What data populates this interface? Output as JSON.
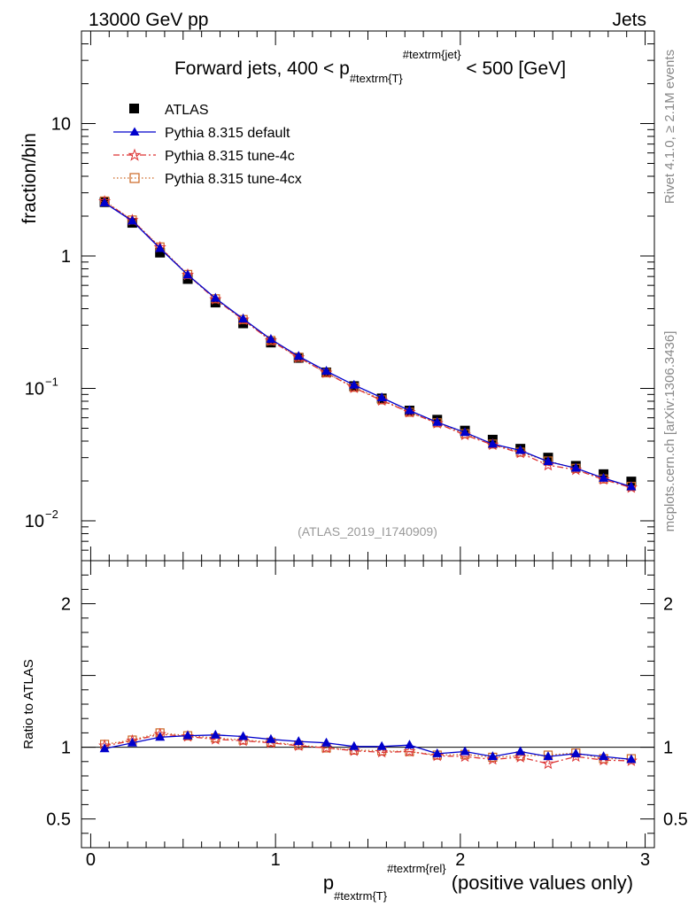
{
  "header": {
    "energy_label": "13000 GeV pp",
    "category_label": "Jets"
  },
  "side_labels": {
    "rivet": "Rivet 4.1.0, ≥ 2.1M events",
    "mcplots": "mcplots.cern.ch [arXiv:1306.3436]"
  },
  "chart_data": [
    {
      "type": "scatter",
      "panel": "main",
      "title_main": "Forward jets, 400 < p",
      "title_sub": "#textrm{T}",
      "title_sup": "#textrm{jet}",
      "title_tail": " < 500 [GeV]",
      "ylabel": "fraction/bin",
      "yscale": "log",
      "ylim": [
        0.005,
        50
      ],
      "xlim": [
        -0.05,
        3.05
      ],
      "y_ticks": [
        {
          "v": 10,
          "label": "10"
        },
        {
          "v": 1,
          "label": "1"
        },
        {
          "v": 0.1,
          "label": "10",
          "exp": "−1"
        },
        {
          "v": 0.01,
          "label": "10",
          "exp": "−2"
        }
      ],
      "analysis_tag": "(ATLAS_2019_I1740909)",
      "legend": [
        "ATLAS",
        "Pythia 8.315 default",
        "Pythia 8.315 tune-4c",
        "Pythia 8.315 tune-4cx"
      ],
      "x": [
        0.075,
        0.225,
        0.375,
        0.525,
        0.675,
        0.825,
        0.975,
        1.125,
        1.275,
        1.425,
        1.575,
        1.725,
        1.875,
        2.025,
        2.175,
        2.325,
        2.475,
        2.625,
        2.775,
        2.925
      ],
      "series": [
        {
          "name": "ATLAS",
          "color": "#000000",
          "values": [
            2.55,
            1.78,
            1.06,
            0.67,
            0.445,
            0.31,
            0.222,
            0.17,
            0.132,
            0.104,
            0.084,
            0.068,
            0.058,
            0.048,
            0.041,
            0.035,
            0.03,
            0.026,
            0.0225,
            0.0198
          ]
        },
        {
          "name": "Pythia 8.315 default",
          "color": "#0000cc",
          "values": [
            2.52,
            1.84,
            1.14,
            0.72,
            0.48,
            0.335,
            0.235,
            0.175,
            0.135,
            0.106,
            0.085,
            0.068,
            0.0555,
            0.0465,
            0.038,
            0.034,
            0.028,
            0.025,
            0.021,
            0.0181
          ]
        },
        {
          "name": "Pythia 8.315 tune-4c",
          "color": "#dd3333",
          "values": [
            2.58,
            1.86,
            1.16,
            0.72,
            0.47,
            0.33,
            0.229,
            0.171,
            0.131,
            0.101,
            0.081,
            0.066,
            0.0545,
            0.0445,
            0.0375,
            0.0325,
            0.0263,
            0.0243,
            0.0205,
            0.0178
          ]
        },
        {
          "name": "Pythia 8.315 tune-4cx",
          "color": "#cc6622",
          "values": [
            2.6,
            1.87,
            1.17,
            0.725,
            0.475,
            0.331,
            0.23,
            0.172,
            0.131,
            0.102,
            0.082,
            0.066,
            0.055,
            0.0455,
            0.038,
            0.033,
            0.0283,
            0.0249,
            0.0207,
            0.0182
          ]
        }
      ]
    },
    {
      "type": "line",
      "panel": "ratio",
      "ylabel": "Ratio to ATLAS",
      "ylim": [
        0.3,
        2.3
      ],
      "y_ticks": [
        {
          "v": 2,
          "label": "2"
        },
        {
          "v": 1,
          "label": "1"
        },
        {
          "v": 0.5,
          "label": "0.5"
        }
      ],
      "x_ticks": [
        {
          "v": 0,
          "label": "0"
        },
        {
          "v": 1,
          "label": "1"
        },
        {
          "v": 2,
          "label": "2"
        },
        {
          "v": 3,
          "label": "3"
        }
      ],
      "xlabel_main": "p",
      "xlabel_sub": "#textrm{T}",
      "xlabel_sup": "#textrm{rel}",
      "xlabel_tail": " (positive values only)",
      "series": [
        {
          "name": "Pythia 8.315 default",
          "values": [
            0.99,
            1.03,
            1.07,
            1.08,
            1.085,
            1.075,
            1.055,
            1.04,
            1.03,
            1.005,
            1.005,
            1.015,
            0.955,
            0.97,
            0.935,
            0.97,
            0.935,
            0.955,
            0.935,
            0.915
          ]
        },
        {
          "name": "Pythia 8.315 tune-4c",
          "values": [
            1.01,
            1.045,
            1.09,
            1.075,
            1.055,
            1.045,
            1.03,
            1.01,
            0.995,
            0.975,
            0.965,
            0.97,
            0.94,
            0.935,
            0.915,
            0.93,
            0.885,
            0.935,
            0.91,
            0.905
          ]
        },
        {
          "name": "Pythia 8.315 tune-4cx",
          "values": [
            1.02,
            1.05,
            1.1,
            1.08,
            1.065,
            1.05,
            1.035,
            1.015,
            0.995,
            0.98,
            0.975,
            0.97,
            0.945,
            0.95,
            0.93,
            0.94,
            0.945,
            0.96,
            0.92,
            0.92
          ]
        }
      ]
    }
  ]
}
